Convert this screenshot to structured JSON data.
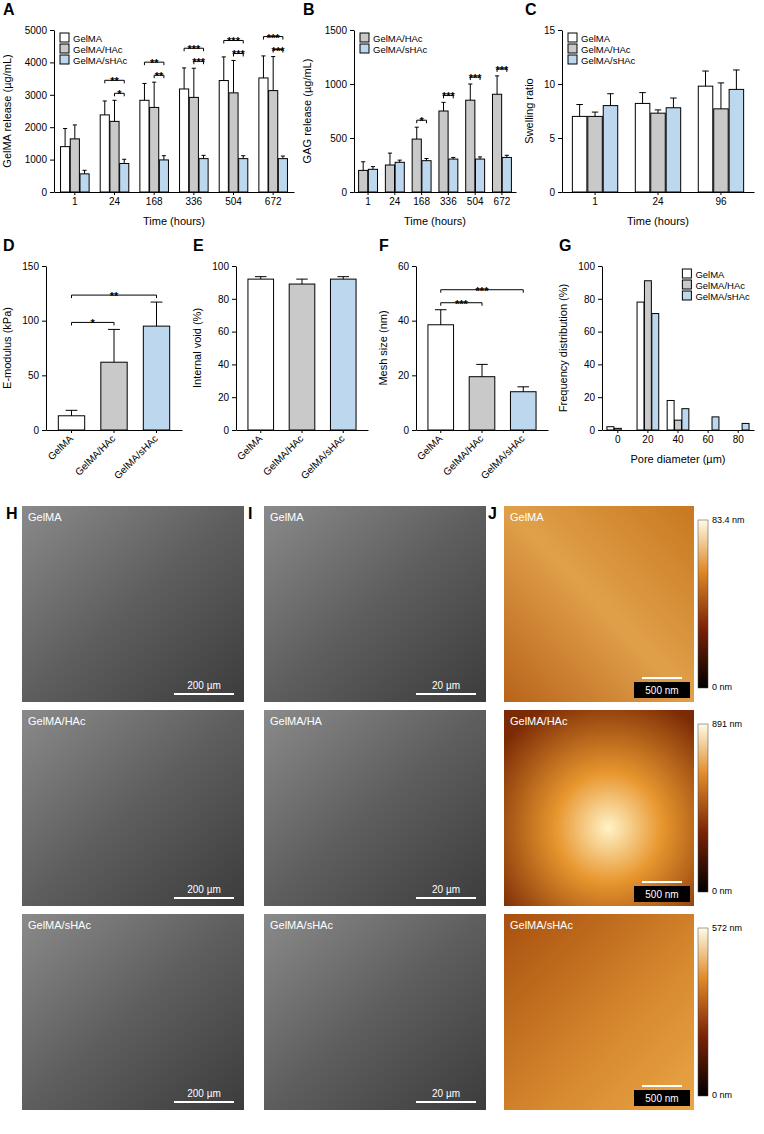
{
  "chart_data": [
    {
      "panel": "A",
      "type": "bar",
      "x_label": "Time (hours)",
      "y_label": "GelMA release (µg/mL)",
      "categories": [
        "1",
        "24",
        "168",
        "336",
        "504",
        "672"
      ],
      "series": [
        {
          "name": "GelMA",
          "color": "#ffffff",
          "values": [
            1400,
            2380,
            2830,
            3180,
            3440,
            3520
          ],
          "errors": [
            560,
            430,
            520,
            650,
            730,
            680
          ]
        },
        {
          "name": "GelMA/HAc",
          "color": "#c9c9c9",
          "values": [
            1640,
            2180,
            2610,
            2920,
            3060,
            3130
          ],
          "errors": [
            430,
            650,
            780,
            900,
            1000,
            1050
          ]
        },
        {
          "name": "GelMA/sHAc",
          "color": "#bdd7ee",
          "values": [
            560,
            880,
            990,
            1030,
            1030,
            1030
          ],
          "errors": [
            110,
            130,
            130,
            100,
            90,
            80
          ]
        }
      ],
      "ylim": [
        0,
        5000
      ],
      "yticks": [
        0,
        1000,
        2000,
        3000,
        4000,
        5000
      ],
      "legend": "top-left",
      "annotations": [
        {
          "text": "*",
          "category": "24",
          "between": [
            "GelMA/HAc",
            "GelMA/sHAc"
          ]
        },
        {
          "text": "**",
          "category": "24",
          "between": [
            "GelMA",
            "GelMA/sHAc"
          ]
        },
        {
          "text": "**",
          "category": "168",
          "between": [
            "GelMA/HAc",
            "GelMA/sHAc"
          ]
        },
        {
          "text": "**",
          "category": "168",
          "between": [
            "GelMA",
            "GelMA/sHAc"
          ]
        },
        {
          "text": "***",
          "category": "336",
          "between": [
            "GelMA/HAc",
            "GelMA/sHAc"
          ]
        },
        {
          "text": "***",
          "category": "336",
          "between": [
            "GelMA",
            "GelMA/sHAc"
          ]
        },
        {
          "text": "***",
          "category": "504",
          "between": [
            "GelMA/HAc",
            "GelMA/sHAc"
          ]
        },
        {
          "text": "***",
          "category": "504",
          "between": [
            "GelMA",
            "GelMA/sHAc"
          ]
        },
        {
          "text": "***",
          "category": "672",
          "between": [
            "GelMA/HAc",
            "GelMA/sHAc"
          ]
        },
        {
          "text": "***",
          "category": "672",
          "between": [
            "GelMA",
            "GelMA/sHAc"
          ]
        }
      ]
    },
    {
      "panel": "B",
      "type": "bar",
      "x_label": "Time (hours)",
      "y_label": "GAG release (µg/mL)",
      "categories": [
        "1",
        "24",
        "168",
        "336",
        "504",
        "672"
      ],
      "series": [
        {
          "name": "GelMA/HAc",
          "color": "#c9c9c9",
          "values": [
            200,
            250,
            490,
            750,
            850,
            905
          ],
          "errors": [
            80,
            110,
            110,
            80,
            150,
            170
          ]
        },
        {
          "name": "GelMA/sHAc",
          "color": "#bdd7ee",
          "values": [
            210,
            275,
            290,
            305,
            305,
            320
          ],
          "errors": [
            25,
            20,
            20,
            15,
            20,
            20
          ]
        }
      ],
      "ylim": [
        0,
        1500
      ],
      "yticks": [
        0,
        500,
        1000,
        1500
      ],
      "legend": "top-left",
      "annotations": [
        {
          "text": "*",
          "category": "168",
          "between": [
            "GelMA/HAc",
            "GelMA/sHAc"
          ]
        },
        {
          "text": "***",
          "category": "336",
          "between": [
            "GelMA/HAc",
            "GelMA/sHAc"
          ]
        },
        {
          "text": "***",
          "category": "504",
          "between": [
            "GelMA/HAc",
            "GelMA/sHAc"
          ]
        },
        {
          "text": "***",
          "category": "672",
          "between": [
            "GelMA/HAc",
            "GelMA/sHAc"
          ]
        }
      ]
    },
    {
      "panel": "C",
      "type": "bar",
      "x_label": "Time (hours)",
      "y_label": "Swelling ratio",
      "categories": [
        "1",
        "24",
        "96"
      ],
      "series": [
        {
          "name": "GelMA",
          "color": "#ffffff",
          "values": [
            7.0,
            8.2,
            9.8
          ],
          "errors": [
            1.1,
            1.0,
            1.4
          ]
        },
        {
          "name": "GelMA/HAc",
          "color": "#c9c9c9",
          "values": [
            7.0,
            7.3,
            7.7
          ],
          "errors": [
            0.4,
            0.3,
            2.4
          ]
        },
        {
          "name": "GelMA/sHAc",
          "color": "#bdd7ee",
          "values": [
            8.0,
            7.8,
            9.5
          ],
          "errors": [
            1.1,
            0.9,
            1.8
          ]
        }
      ],
      "ylim": [
        0,
        15
      ],
      "yticks": [
        0,
        5,
        10,
        15
      ],
      "legend": "top-left"
    },
    {
      "panel": "D",
      "type": "bar",
      "y_label": "E-modulus (kPa)",
      "categories": [
        "GelMA",
        "GelMA/HAc",
        "GelMA/sHAc"
      ],
      "values": [
        13,
        62,
        95
      ],
      "errors": [
        5,
        30,
        22
      ],
      "colors": [
        "#ffffff",
        "#c9c9c9",
        "#bdd7ee"
      ],
      "ylim": [
        0,
        150
      ],
      "yticks": [
        0,
        50,
        100,
        150
      ],
      "annotations": [
        {
          "text": "*",
          "between": [
            "GelMA",
            "GelMA/HAc"
          ]
        },
        {
          "text": "**",
          "between": [
            "GelMA",
            "GelMA/sHAc"
          ]
        }
      ]
    },
    {
      "panel": "E",
      "type": "bar",
      "y_label": "Internal void (%)",
      "categories": [
        "GelMA",
        "GelMA/HAc",
        "GelMA/sHAc"
      ],
      "values": [
        92,
        89,
        92
      ],
      "errors": [
        1.5,
        3,
        1.5
      ],
      "colors": [
        "#ffffff",
        "#c9c9c9",
        "#bdd7ee"
      ],
      "ylim": [
        0,
        100
      ],
      "yticks": [
        0,
        20,
        40,
        60,
        80,
        100
      ]
    },
    {
      "panel": "F",
      "type": "bar",
      "y_label": "Mesh size (nm)",
      "categories": [
        "GelMA",
        "GelMA/HAc",
        "GelMA/sHAc"
      ],
      "values": [
        38.5,
        19.5,
        14
      ],
      "errors": [
        5.5,
        4.5,
        1.8
      ],
      "colors": [
        "#ffffff",
        "#c9c9c9",
        "#bdd7ee"
      ],
      "ylim": [
        0,
        60
      ],
      "yticks": [
        0,
        20,
        40,
        60
      ],
      "annotations": [
        {
          "text": "***",
          "between": [
            "GelMA",
            "GelMA/HAc"
          ]
        },
        {
          "text": "***",
          "between": [
            "GelMA",
            "GelMA/sHAc"
          ]
        }
      ]
    },
    {
      "panel": "G",
      "type": "bar",
      "x_label": "Pore diameter (µm)",
      "y_label": "Frequency distribution (%)",
      "categories": [
        "0",
        "20",
        "40",
        "60",
        "80"
      ],
      "series": [
        {
          "name": "GelMA",
          "color": "#ffffff",
          "values": [
            2,
            78,
            18,
            0,
            0
          ]
        },
        {
          "name": "GelMA/HAc",
          "color": "#c9c9c9",
          "values": [
            1,
            91,
            6,
            0,
            0
          ]
        },
        {
          "name": "GelMA/sHAc",
          "color": "#bdd7ee",
          "values": [
            0,
            71,
            13,
            8,
            4
          ]
        }
      ],
      "ylim": [
        0,
        100
      ],
      "yticks": [
        0,
        20,
        40,
        60,
        80,
        100
      ],
      "legend": "top-right"
    }
  ],
  "images": [
    {
      "panel": "H",
      "tiles": [
        {
          "label": "GelMA",
          "scale_bar": "200 µm"
        },
        {
          "label": "GelMA/HAc",
          "scale_bar": "200 µm"
        },
        {
          "label": "GelMA/sHAc",
          "scale_bar": "200 µm"
        }
      ]
    },
    {
      "panel": "I",
      "tiles": [
        {
          "label": "GelMA",
          "scale_bar": "20 µm"
        },
        {
          "label": "GelMA/HA",
          "scale_bar": "20 µm"
        },
        {
          "label": "GelMA/sHAc",
          "scale_bar": "20 µm"
        }
      ]
    },
    {
      "panel": "J",
      "tiles": [
        {
          "label": "GelMA",
          "scale_bar": "500 nm",
          "color_max": "83.4 nm",
          "color_min": "0 nm"
        },
        {
          "label": "GelMA/HAc",
          "scale_bar": "500 nm",
          "color_max": "891 nm",
          "color_min": "0 nm"
        },
        {
          "label": "GelMA/sHAc",
          "scale_bar": "500 nm",
          "color_max": "572 nm",
          "color_min": "0 nm"
        }
      ]
    }
  ]
}
